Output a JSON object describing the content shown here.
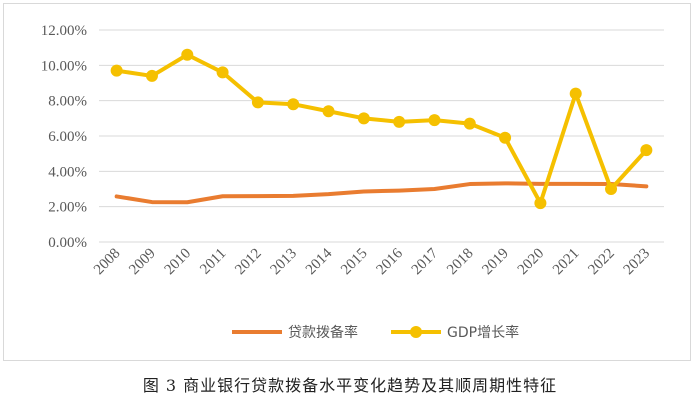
{
  "caption": "图 3  商业银行贷款拨备水平变化趋势及其顺周期性特征",
  "colors": {
    "provision": "#E97C30",
    "gdp": "#F5C000",
    "grid": "#d9d9d9",
    "tick": "#595959"
  },
  "chart_data": {
    "type": "line",
    "title": "",
    "categories": [
      "2008",
      "2009",
      "2010",
      "2011",
      "2012",
      "2013",
      "2014",
      "2015",
      "2016",
      "2017",
      "2018",
      "2019",
      "2020",
      "2021",
      "2022",
      "2023"
    ],
    "series": [
      {
        "name": "贷款拨备率",
        "values": [
          2.58,
          2.26,
          2.25,
          2.59,
          2.6,
          2.61,
          2.71,
          2.86,
          2.91,
          3.0,
          3.28,
          3.32,
          3.29,
          3.29,
          3.28,
          3.15
        ],
        "marker": false
      },
      {
        "name": "GDP增长率",
        "values": [
          9.7,
          9.4,
          10.6,
          9.6,
          7.9,
          7.8,
          7.4,
          7.0,
          6.8,
          6.9,
          6.7,
          5.9,
          2.2,
          8.4,
          3.0,
          5.2
        ],
        "marker": true
      }
    ],
    "y_ticks": [
      "0.00%",
      "2.00%",
      "4.00%",
      "6.00%",
      "8.00%",
      "10.00%",
      "12.00%"
    ],
    "ylim": [
      0,
      12
    ],
    "xlabel": "",
    "ylabel": "",
    "legend": "bottom-center",
    "grid": true
  }
}
